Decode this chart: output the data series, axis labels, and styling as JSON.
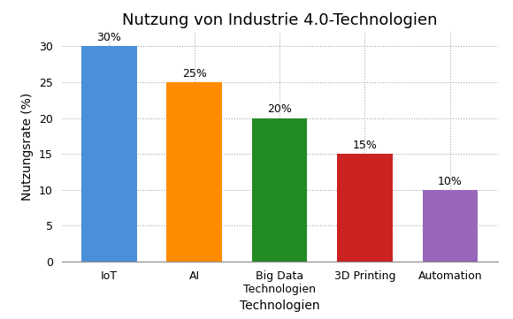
{
  "title": "Nutzung von Industrie 4.0-Technologien",
  "xlabel": "Technologien",
  "ylabel": "Nutzungsrate (%)",
  "categories": [
    "IoT",
    "AI",
    "Big Data\nTechnologien",
    "3D Printing",
    "Automation"
  ],
  "values": [
    30,
    25,
    20,
    15,
    10
  ],
  "bar_colors": [
    "#4a90d9",
    "#ff8c00",
    "#228b22",
    "#cc2222",
    "#9966bb"
  ],
  "labels": [
    "30%",
    "25%",
    "20%",
    "15%",
    "10%"
  ],
  "ylim": [
    0,
    32
  ],
  "yticks": [
    0,
    5,
    10,
    15,
    20,
    25,
    30
  ],
  "background_color": "#ffffff",
  "grid_color": "#aaaaaa",
  "title_fontsize": 13,
  "axis_label_fontsize": 10,
  "tick_fontsize": 9,
  "bar_label_fontsize": 9,
  "bar_width": 0.65
}
